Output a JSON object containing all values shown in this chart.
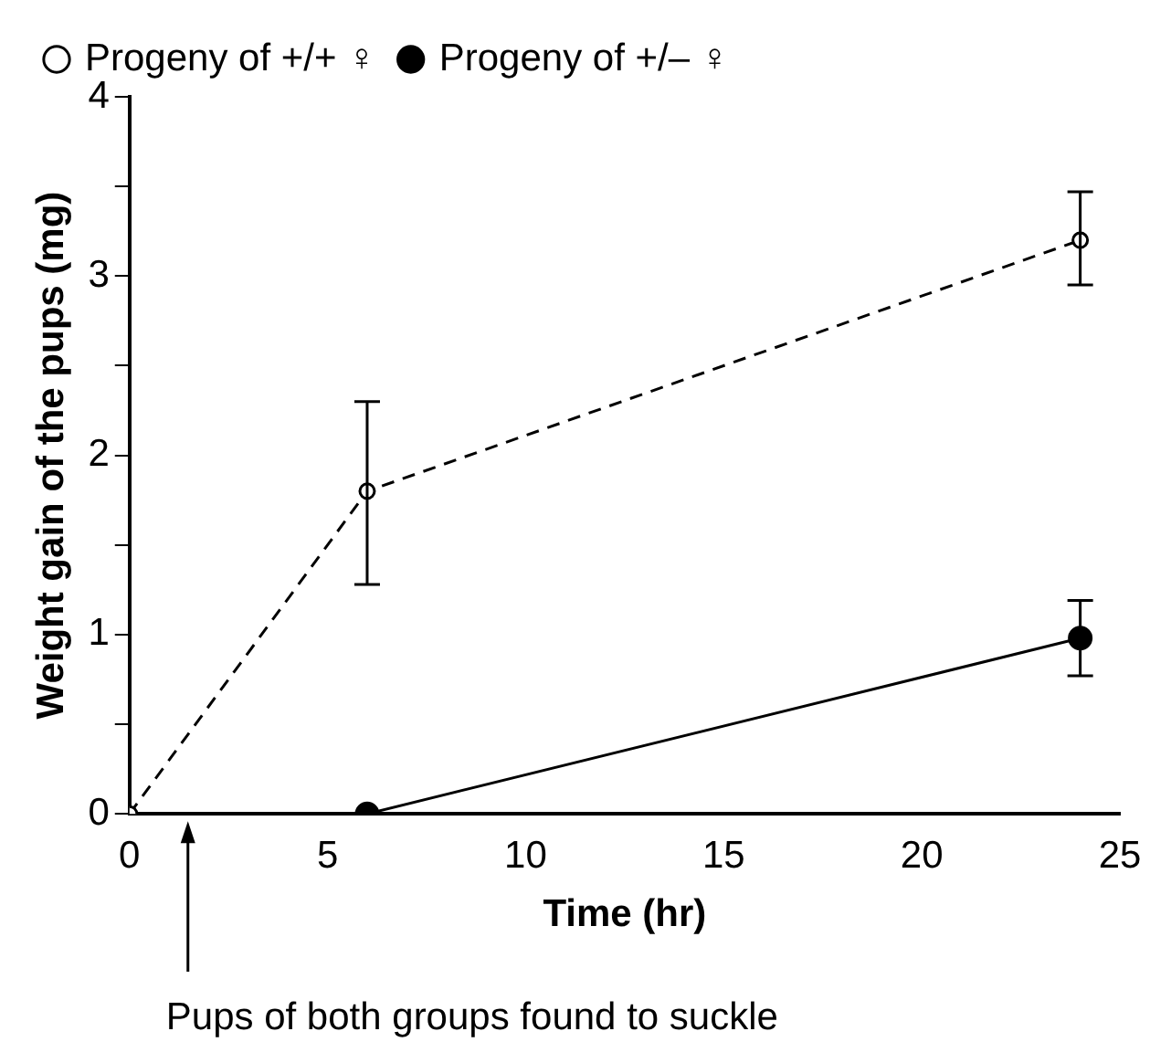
{
  "chart_data": {
    "type": "line",
    "xlabel": "Time (hr)",
    "ylabel": "Weight gain of the pups (mg)",
    "xlim": [
      0,
      25
    ],
    "xticks": [
      0,
      5,
      10,
      15,
      20,
      25
    ],
    "ylim": [
      0,
      4
    ],
    "yticks": [
      0,
      {
        "value": 0.5,
        "label": null
      },
      1,
      {
        "value": 1.5,
        "label": null
      },
      2,
      {
        "value": 2.5,
        "label": null
      },
      3,
      {
        "value": 3.5,
        "label": null
      },
      4
    ],
    "grid": false,
    "legend": "top left",
    "marker": "circle",
    "series": [
      {
        "name": "Progeny of +/+ ♀",
        "color": "#000000",
        "line_style": "dashed",
        "x": [
          0,
          6,
          24
        ],
        "values": [
          0,
          1.8,
          3.2
        ],
        "errors": [
          null,
          [
            1.28,
            2.3
          ],
          [
            2.95,
            3.47
          ]
        ]
      },
      {
        "name": "Progeny of +/– ♀",
        "color": "#000000",
        "line_style": "solid",
        "x": [
          6,
          24
        ],
        "values": [
          0,
          0.98
        ],
        "errors": [
          null,
          [
            0.77,
            1.19
          ]
        ]
      }
    ],
    "annotations": [
      "Pups of both groups found to suckle"
    ]
  }
}
